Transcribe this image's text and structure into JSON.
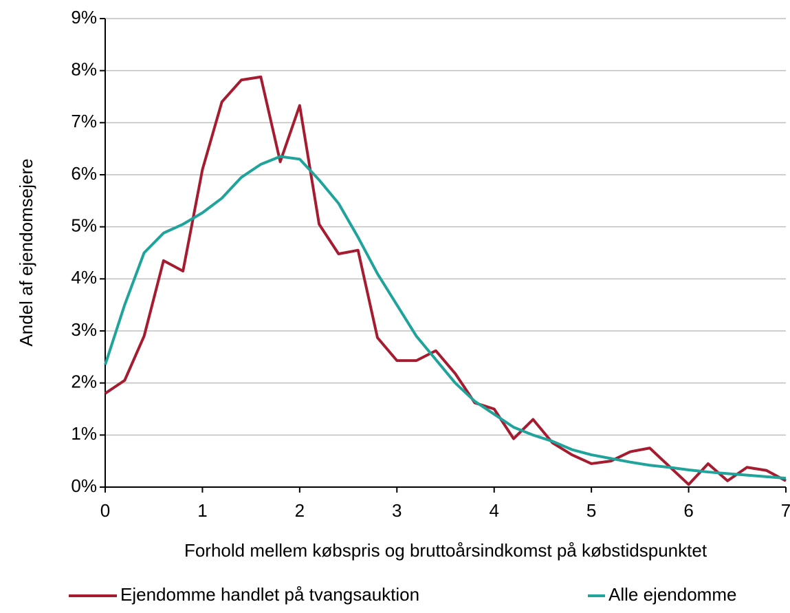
{
  "chart_data": {
    "type": "line",
    "y_label": "Andel af ejendomsejere",
    "x_label": "Forhold mellem købspris og bruttoårsindkomst på købstidspunktet",
    "x": [
      0,
      0.2,
      0.4,
      0.6,
      0.8,
      1.0,
      1.2,
      1.4,
      1.6,
      1.8,
      2.0,
      2.2,
      2.4,
      2.6,
      2.8,
      3.0,
      3.2,
      3.4,
      3.6,
      3.8,
      4.0,
      4.2,
      4.4,
      4.6,
      4.8,
      5.0,
      5.2,
      5.4,
      5.6,
      5.8,
      6.0,
      6.2,
      6.4,
      6.6,
      6.8,
      7.0
    ],
    "series": [
      {
        "name": "Ejendomme handlet på tvangsauktion",
        "color": "#a51c30",
        "values": [
          1.8,
          2.05,
          2.9,
          4.35,
          4.15,
          6.1,
          7.4,
          7.82,
          7.88,
          6.25,
          7.33,
          5.05,
          4.48,
          4.55,
          2.87,
          2.43,
          2.43,
          2.62,
          2.18,
          1.62,
          1.5,
          0.93,
          1.3,
          0.85,
          0.62,
          0.45,
          0.5,
          0.68,
          0.75,
          0.4,
          0.05,
          0.45,
          0.12,
          0.38,
          0.32,
          0.12
        ]
      },
      {
        "name": "Alle ejendomme",
        "color": "#1fa39a",
        "values": [
          2.35,
          3.5,
          4.5,
          4.88,
          5.05,
          5.27,
          5.55,
          5.95,
          6.2,
          6.35,
          6.3,
          5.9,
          5.45,
          4.8,
          4.1,
          3.5,
          2.9,
          2.45,
          2.0,
          1.65,
          1.4,
          1.15,
          1.0,
          0.88,
          0.72,
          0.62,
          0.55,
          0.48,
          0.42,
          0.38,
          0.33,
          0.29,
          0.26,
          0.23,
          0.2,
          0.17
        ]
      }
    ],
    "xlim": [
      0,
      7
    ],
    "xticks": [
      0,
      1,
      2,
      3,
      4,
      5,
      6,
      7
    ],
    "ylim": [
      0,
      9
    ],
    "yticks": [
      {
        "value": 0,
        "label": "0%"
      },
      {
        "value": 1,
        "label": "1%"
      },
      {
        "value": 2,
        "label": "2%"
      },
      {
        "value": 3,
        "label": "3%"
      },
      {
        "value": 4,
        "label": "4%"
      },
      {
        "value": 5,
        "label": "5%"
      },
      {
        "value": 6,
        "label": "6%"
      },
      {
        "value": 7,
        "label": "7%"
      },
      {
        "value": 8,
        "label": "8%"
      },
      {
        "value": 9,
        "label": "9%"
      }
    ],
    "grid": true,
    "legend": "bottom"
  }
}
